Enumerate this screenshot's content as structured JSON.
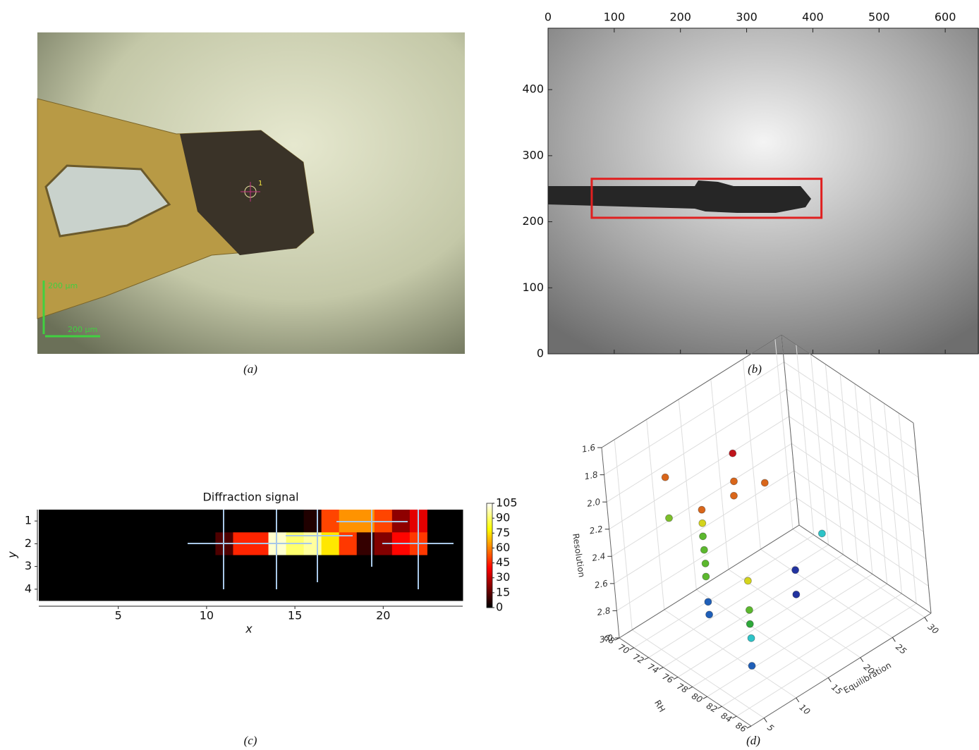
{
  "captions": [
    "(a)",
    "(b)",
    "(c)",
    "(d)"
  ],
  "panel_a": {
    "scale_labels": [
      "200 µm",
      "200 µm"
    ],
    "marker_label": "1"
  },
  "chart_data": [
    {
      "type": "image",
      "xlim": [
        0,
        651
      ],
      "ylim": [
        0,
        493
      ],
      "xticks": [
        0,
        100,
        200,
        300,
        400,
        500,
        600
      ],
      "yticks": [
        0,
        100,
        200,
        300,
        400
      ],
      "box": {
        "x": [
          66,
          413
        ],
        "y": [
          206,
          265
        ],
        "color": "#e02020"
      }
    },
    {
      "type": "heatmap",
      "title": "Diffraction signal",
      "xlabel": "x",
      "ylabel": "y",
      "xlim": [
        0.5,
        24.5
      ],
      "ylim": [
        4.5,
        0.5
      ],
      "xticks": [
        5,
        10,
        15,
        20
      ],
      "yticks": [
        1,
        2,
        3,
        4
      ],
      "values": [
        [
          0,
          0,
          0,
          0,
          0,
          0,
          0,
          0,
          0,
          0,
          0,
          0,
          0,
          0,
          0,
          5,
          50,
          62,
          62,
          50,
          22,
          35,
          0,
          0
        ],
        [
          0,
          0,
          0,
          0,
          0,
          0,
          0,
          0,
          0,
          0,
          12,
          45,
          45,
          100,
          90,
          95,
          75,
          48,
          8,
          20,
          40,
          48,
          0,
          0
        ],
        [
          0,
          0,
          0,
          0,
          0,
          0,
          0,
          0,
          0,
          0,
          0,
          0,
          0,
          0,
          0,
          0,
          0,
          0,
          0,
          0,
          0,
          0,
          0,
          0
        ],
        [
          0,
          0,
          0,
          0,
          0,
          0,
          0,
          0,
          0,
          0,
          0,
          0,
          0,
          0,
          0,
          0,
          0,
          0,
          0,
          0,
          0,
          0,
          0,
          0
        ]
      ],
      "clim": [
        0,
        105
      ],
      "colorbar_ticks": [
        0,
        15,
        30,
        45,
        60,
        75,
        90,
        105
      ],
      "colormap": "hot"
    },
    {
      "type": "scatter3d",
      "xlabel": "RH",
      "ylabel": "Resolution",
      "zlabel": "Equilibration",
      "xlim": [
        68,
        86
      ],
      "ylim": [
        1.6,
        3.0
      ],
      "zlim": [
        3,
        31
      ],
      "xticks": [
        68,
        70,
        72,
        74,
        76,
        78,
        80,
        82,
        84,
        86
      ],
      "yticks": [
        1.6,
        1.8,
        {
          "value": 2,
          "label": "2.0"
        },
        2.2,
        2.4,
        2.6,
        2.8,
        {
          "value": 3,
          "label": "3.0"
        }
      ],
      "zticks": [
        5,
        10,
        15,
        20,
        25,
        30
      ],
      "x": [
        76.5,
        72.3,
        76.5,
        78.7,
        76.5,
        75.1,
        72.3,
        75.8,
        75.7,
        75.7,
        75.7,
        75.6,
        81.0,
        77.3,
        79.3,
        78.9,
        73.1,
        73.0,
        78.2,
        78.2,
        77.5,
        79.7
      ],
      "y": [
        1.65,
        1.8,
        1.85,
        1.85,
        1.95,
        2.0,
        2.1,
        2.05,
        2.15,
        2.25,
        2.35,
        2.45,
        2.3,
        2.55,
        2.55,
        2.75,
        2.8,
        2.9,
        2.7,
        2.8,
        2.95,
        3.0
      ],
      "z": [
        13.6,
        7.6,
        13.4,
        15.7,
        13.2,
        9.7,
        7.6,
        8.9,
        8.9,
        8.9,
        8.9,
        8.9,
        21.1,
        13.3,
        18.4,
        18.6,
        11.4,
        11.5,
        12.2,
        12.1,
        12.8,
        10.3
      ],
      "colors": [
        "#c0141c",
        "#d9661a",
        "#d9661a",
        "#d9661a",
        "#d9661a",
        "#d9661a",
        "#7cbf2a",
        "#d4d41c",
        "#5cb82e",
        "#5cb82e",
        "#5cb82e",
        "#5cb82e",
        "#2ec4c8",
        "#d4d41c",
        "#2233a0",
        "#2233a0",
        "#1f5fb8",
        "#1f5fb8",
        "#5cb82e",
        "#2ea83a",
        "#2ec4c8",
        "#1f5fb8"
      ]
    }
  ]
}
